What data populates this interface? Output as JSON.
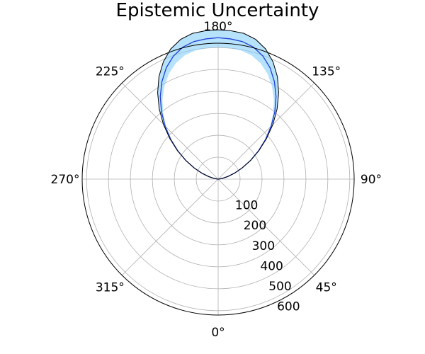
{
  "chart_data": {
    "type": "line",
    "projection": "polar",
    "title": "Epistemic Uncertainty",
    "theta_zero_location": "bottom",
    "theta_direction": "counterclockwise",
    "angle_labels": [
      "0°",
      "45°",
      "90°",
      "135°",
      "180°",
      "225°",
      "270°",
      "315°"
    ],
    "angle_ticks_deg": [
      0,
      45,
      90,
      135,
      180,
      225,
      270,
      315
    ],
    "radial_labels": [
      "100",
      "200",
      "300",
      "400",
      "500",
      "600"
    ],
    "radial_ticks": [
      100,
      200,
      300,
      400,
      500,
      600
    ],
    "rlim": [
      0,
      620
    ],
    "grid": true,
    "series": [
      {
        "role": "mean",
        "color": "#1f3fd8",
        "theta_deg": [
          90,
          95,
          100,
          105,
          110,
          115,
          120,
          125,
          130,
          135,
          140,
          145,
          150,
          155,
          160,
          165,
          170,
          175,
          180,
          185,
          190,
          195,
          200,
          205,
          210,
          215,
          220,
          225,
          230,
          235,
          240,
          245,
          250,
          255,
          260,
          265,
          270
        ],
        "r": [
          0,
          5,
          20,
          45,
          79,
          121,
          170,
          224,
          282,
          342,
          402,
          460,
          513,
          560,
          597,
          623,
          637,
          642,
          645,
          642,
          637,
          623,
          597,
          560,
          513,
          460,
          402,
          342,
          282,
          224,
          170,
          121,
          79,
          45,
          20,
          5,
          0
        ]
      },
      {
        "role": "uncertainty_band",
        "color": "#87cefa",
        "theta_deg": [
          90,
          95,
          100,
          105,
          110,
          115,
          120,
          125,
          130,
          135,
          140,
          145,
          150,
          155,
          160,
          165,
          170,
          175,
          180,
          185,
          190,
          195,
          200,
          205,
          210,
          215,
          220,
          225,
          230,
          235,
          240,
          245,
          250,
          255,
          260,
          265,
          270
        ],
        "r_lower": [
          0,
          5,
          20,
          45,
          79,
          121,
          170,
          222,
          278,
          334,
          390,
          443,
          490,
          531,
          563,
          585,
          596,
          600,
          602,
          600,
          596,
          585,
          563,
          531,
          490,
          443,
          390,
          334,
          278,
          222,
          170,
          121,
          79,
          45,
          20,
          5,
          0
        ],
        "r_upper": [
          0,
          5,
          20,
          45,
          79,
          121,
          171,
          227,
          288,
          353,
          418,
          481,
          540,
          591,
          632,
          660,
          675,
          679,
          681,
          679,
          675,
          660,
          632,
          591,
          540,
          481,
          418,
          353,
          288,
          227,
          171,
          121,
          79,
          45,
          20,
          5,
          0
        ]
      },
      {
        "role": "outer_envelope",
        "color": "#000000",
        "theta_deg": [
          90,
          95,
          100,
          105,
          110,
          115,
          120,
          125,
          130,
          135,
          140,
          145,
          150,
          155,
          160,
          165,
          170,
          175,
          180,
          185,
          190,
          195,
          200,
          205,
          210,
          215,
          220,
          225,
          230,
          235,
          240,
          245,
          250,
          255,
          260,
          265,
          270
        ],
        "r": [
          0,
          5,
          20,
          45,
          79,
          121,
          171,
          227,
          288,
          353,
          418,
          481,
          540,
          591,
          632,
          660,
          675,
          679,
          681,
          679,
          675,
          660,
          632,
          591,
          540,
          481,
          418,
          353,
          288,
          227,
          171,
          121,
          79,
          45,
          20,
          5,
          0
        ]
      }
    ]
  }
}
